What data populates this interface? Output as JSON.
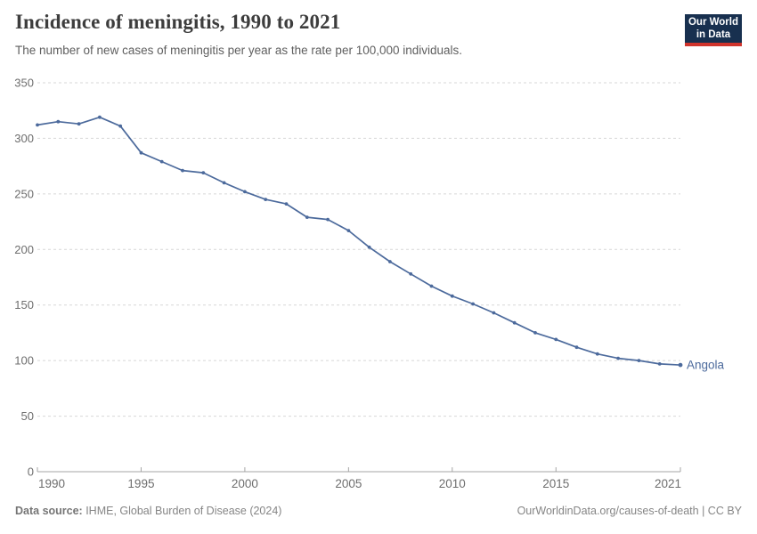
{
  "header": {
    "title": "Incidence of meningitis, 1990 to 2021",
    "subtitle": "The number of new cases of meningitis per year as the rate per 100,000 individuals.",
    "logo": {
      "line1": "Our World",
      "line2": "in Data",
      "bg_color": "#18304f",
      "stripe_color": "#d0342c"
    }
  },
  "chart_data": {
    "type": "line",
    "title": "Incidence of meningitis, 1990 to 2021",
    "xlabel": "",
    "ylabel": "",
    "x": [
      1990,
      1991,
      1992,
      1993,
      1994,
      1995,
      1996,
      1997,
      1998,
      1999,
      2000,
      2001,
      2002,
      2003,
      2004,
      2005,
      2006,
      2007,
      2008,
      2009,
      2010,
      2011,
      2012,
      2013,
      2014,
      2015,
      2016,
      2017,
      2018,
      2019,
      2020,
      2021
    ],
    "series": [
      {
        "name": "Angola",
        "color": "#4c6a9c",
        "values": [
          312,
          315,
          313,
          319,
          311,
          287,
          279,
          271,
          269,
          260,
          252,
          245,
          241,
          229,
          227,
          217,
          202,
          189,
          178,
          167,
          158,
          151,
          143,
          134,
          125,
          119,
          112,
          106,
          102,
          100,
          97,
          96
        ]
      }
    ],
    "ylim": [
      0,
      350
    ],
    "yticks": [
      0,
      50,
      100,
      150,
      200,
      250,
      300,
      350
    ],
    "xticks": [
      1990,
      1995,
      2000,
      2005,
      2010,
      2015,
      2021
    ],
    "grid": "horizontal-dashed",
    "legend": "end-of-line-label",
    "grid_color": "#d7d7d7",
    "axis_color": "#a5a5a5",
    "tick_color": "#6e6e6e"
  },
  "footer": {
    "source_label": "Data source:",
    "source_text": " IHME, Global Burden of Disease (2024)",
    "credit": "OurWorldinData.org/causes-of-death | CC BY"
  }
}
